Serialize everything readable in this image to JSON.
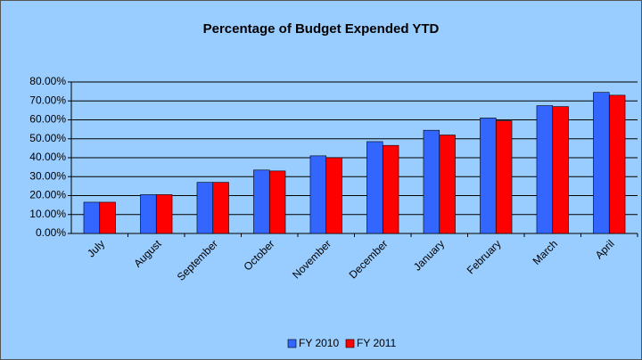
{
  "chart_data": {
    "type": "bar",
    "title": "Percentage of Budget Expended YTD",
    "categories": [
      "July",
      "August",
      "September",
      "October",
      "November",
      "December",
      "January",
      "February",
      "March",
      "April"
    ],
    "series": [
      {
        "name": "FY 2010",
        "color": "#3366ff",
        "values": [
          16.5,
          20.5,
          27,
          33.5,
          41,
          48.5,
          54.5,
          61,
          67.5,
          74.5
        ]
      },
      {
        "name": "FY 2011",
        "color": "#ff0000",
        "values": [
          16.5,
          20.5,
          27,
          33,
          40,
          46.5,
          52,
          59.5,
          67,
          73
        ]
      }
    ],
    "ylim": [
      0,
      80
    ],
    "yticks": [
      {
        "value": 0,
        "label": "0.00%"
      },
      {
        "value": 10,
        "label": "10.00%"
      },
      {
        "value": 20,
        "label": "20.00%"
      },
      {
        "value": 30,
        "label": "30.00%"
      },
      {
        "value": 40,
        "label": "40.00%"
      },
      {
        "value": 50,
        "label": "50.00%"
      },
      {
        "value": 60,
        "label": "60.00%"
      },
      {
        "value": 70,
        "label": "70.00%"
      },
      {
        "value": 80,
        "label": "80.00%"
      }
    ],
    "grid": true,
    "legend": "bottom"
  }
}
